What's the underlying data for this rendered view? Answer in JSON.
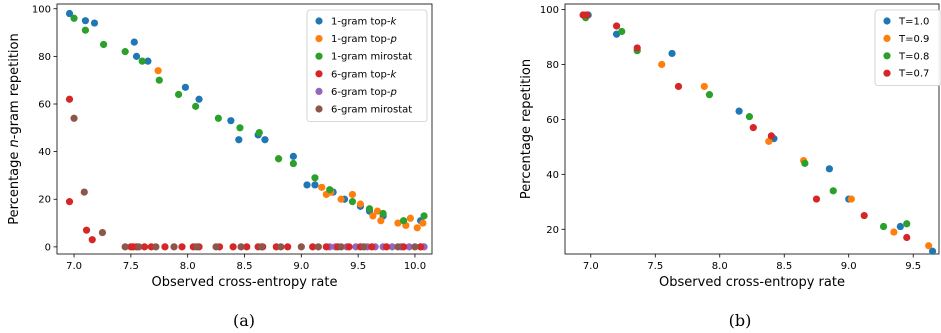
{
  "chart_data": [
    {
      "panel_caption": "(a)",
      "type": "scatter",
      "xlabel": "Observed cross-entropy rate",
      "ylabel_parts": [
        "Percentage ",
        "n",
        "-gram repetition"
      ],
      "xlim": [
        6.85,
        10.15
      ],
      "ylim": [
        -3,
        102
      ],
      "xticks": [
        7.0,
        7.5,
        8.0,
        8.5,
        9.0,
        9.5,
        10.0
      ],
      "xtick_labels": [
        "7.0",
        "7.5",
        "8.0",
        "8.5",
        "9.0",
        "9.5",
        "10.0"
      ],
      "yticks": [
        0,
        20,
        40,
        60,
        80,
        100
      ],
      "ytick_labels": [
        "0",
        "20",
        "40",
        "60",
        "80",
        "100"
      ],
      "legend_position": "top-right",
      "series": [
        {
          "name_parts": [
            "1-gram top-",
            "k"
          ],
          "color": "#1f77b4",
          "x": [
            6.96,
            7.1,
            7.18,
            7.53,
            7.55,
            7.65,
            7.98,
            8.1,
            8.38,
            8.45,
            8.62,
            8.68,
            8.93,
            9.05,
            9.12,
            9.28,
            9.38,
            9.52,
            9.6,
            9.72,
            10.05
          ],
          "y": [
            98,
            95,
            94,
            86,
            80,
            78,
            67,
            62,
            53,
            45,
            47,
            45,
            38,
            26,
            26,
            23,
            20,
            17,
            15,
            13,
            11
          ]
        },
        {
          "name_parts": [
            "1-gram top-",
            "p"
          ],
          "color": "#ff7f0e",
          "x": [
            7.74,
            8.8,
            9.18,
            9.22,
            9.26,
            9.35,
            9.45,
            9.52,
            9.63,
            9.67,
            9.7,
            9.85,
            9.92,
            9.96,
            10.02,
            10.07
          ],
          "y": [
            74,
            37,
            25,
            22,
            23,
            20,
            22,
            18,
            13,
            15,
            11,
            10,
            9,
            12,
            8,
            10
          ]
        },
        {
          "name_parts": [
            "1-gram mirostat"
          ],
          "color": "#2ca02c",
          "x": [
            7.0,
            7.1,
            7.26,
            7.45,
            7.6,
            7.75,
            7.92,
            8.07,
            8.27,
            8.46,
            8.63,
            8.8,
            8.93,
            9.12,
            9.25,
            9.45,
            9.6,
            9.72,
            9.9,
            10.08
          ],
          "y": [
            96,
            91,
            85,
            82,
            78,
            70,
            64,
            59,
            54,
            50,
            48,
            37,
            35,
            29,
            24,
            19,
            16,
            14,
            11,
            13
          ]
        },
        {
          "name_parts": [
            "6-gram top-",
            "k"
          ],
          "color": "#d62728",
          "x": [
            6.96,
            6.96,
            7.11,
            7.16
          ],
          "y": [
            62,
            19,
            7,
            3
          ]
        },
        {
          "name_parts": [
            "6-gram top-",
            "p"
          ],
          "color": "#9467bd",
          "x": [
            9.25,
            9.3,
            9.4,
            9.48,
            9.58,
            9.65,
            9.72,
            9.8,
            9.88,
            9.95,
            10.05,
            10.08
          ],
          "y": [
            0,
            0,
            0,
            0,
            0,
            0,
            0,
            0,
            0,
            0,
            0,
            0
          ]
        },
        {
          "name_parts": [
            "6-gram mirostat"
          ],
          "color": "#8c564b",
          "x": [
            7.0,
            7.09,
            7.25
          ],
          "y": [
            54,
            23,
            6
          ]
        }
      ],
      "zero_line_series_colors": [
        "#d62728",
        "#8c564b"
      ]
    },
    {
      "panel_caption": "(b)",
      "type": "scatter",
      "xlabel": "Observed cross-entropy rate",
      "ylabel": "Percentage repetition",
      "xlim": [
        6.8,
        9.7
      ],
      "ylim": [
        11,
        102
      ],
      "xticks": [
        7.0,
        7.5,
        8.0,
        8.5,
        9.0,
        9.5
      ],
      "xtick_labels": [
        "7.0",
        "7.5",
        "8.0",
        "8.5",
        "9.0",
        "9.5"
      ],
      "yticks": [
        20,
        40,
        60,
        80,
        100
      ],
      "ytick_labels": [
        "20",
        "40",
        "60",
        "80",
        "100"
      ],
      "legend_position": "top-right",
      "series": [
        {
          "name": "T=1.0",
          "color": "#1f77b4",
          "x": [
            6.98,
            7.2,
            7.63,
            8.15,
            8.42,
            8.85,
            9.0,
            9.4,
            9.65
          ],
          "y": [
            98,
            91,
            84,
            63,
            53,
            42,
            31,
            21,
            12
          ]
        },
        {
          "name": "T=0.9",
          "color": "#ff7f0e",
          "x": [
            6.95,
            7.55,
            7.88,
            8.38,
            8.65,
            9.02,
            9.35,
            9.62
          ],
          "y": [
            98,
            80,
            72,
            52,
            45,
            31,
            19,
            14
          ]
        },
        {
          "name": "T=0.8",
          "color": "#2ca02c",
          "x": [
            6.96,
            7.24,
            7.36,
            7.92,
            8.23,
            8.66,
            8.88,
            9.27,
            9.45
          ],
          "y": [
            97,
            92,
            85,
            69,
            61,
            44,
            34,
            21,
            22
          ]
        },
        {
          "name": "T=0.7",
          "color": "#d62728",
          "x": [
            6.94,
            6.97,
            7.2,
            7.36,
            7.68,
            8.26,
            8.4,
            8.75,
            9.12,
            9.45
          ],
          "y": [
            98,
            98,
            94,
            86,
            72,
            57,
            54,
            31,
            25,
            17
          ]
        }
      ]
    }
  ]
}
